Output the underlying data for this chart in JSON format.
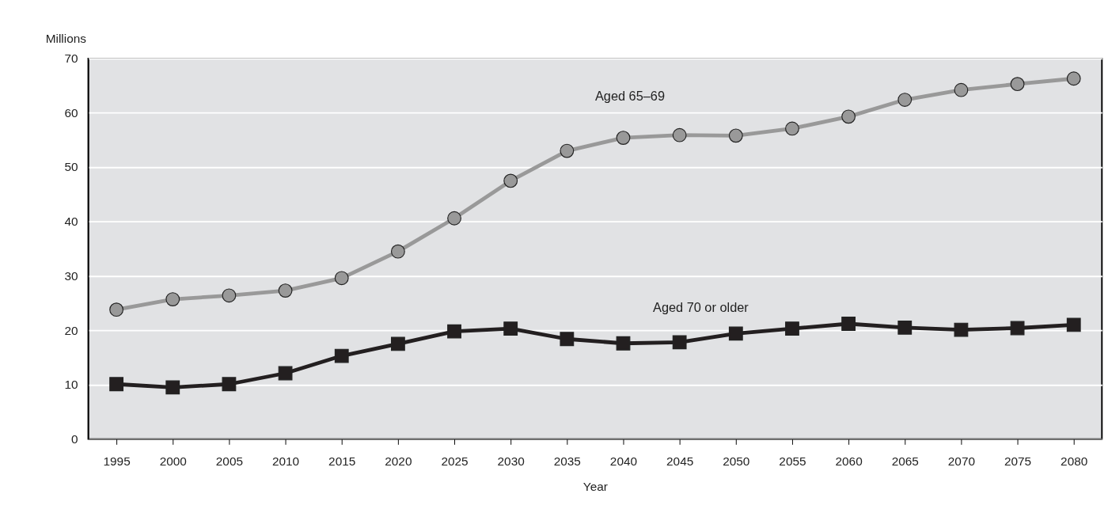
{
  "chart_data": {
    "type": "line",
    "ylabel": "Millions",
    "xlabel": "Year",
    "categories": [
      "1995",
      "2000",
      "2005",
      "2010",
      "2015",
      "2020",
      "2025",
      "2030",
      "2035",
      "2040",
      "2045",
      "2050",
      "2055",
      "2060",
      "2065",
      "2070",
      "2075",
      "2080"
    ],
    "series": [
      {
        "name": "Aged 65–69",
        "color": "#999999",
        "marker": "circle",
        "line_style": "solid",
        "values": [
          23.8,
          25.7,
          26.4,
          27.3,
          29.6,
          34.5,
          40.6,
          47.5,
          53.0,
          55.4,
          55.9,
          55.8,
          57.1,
          59.3,
          62.4,
          64.2,
          65.3,
          66.3
        ]
      },
      {
        "name": "Aged 70 or older",
        "color": "#231f20",
        "marker": "square",
        "line_style": "solid",
        "values": [
          10.1,
          9.5,
          10.1,
          12.1,
          15.3,
          17.5,
          19.8,
          20.3,
          18.4,
          17.6,
          17.8,
          19.4,
          20.3,
          21.2,
          20.5,
          20.1,
          20.4,
          21.0
        ]
      }
    ],
    "ylim": [
      0,
      70
    ],
    "yticks": [
      0,
      10,
      20,
      30,
      40,
      50,
      60,
      70
    ],
    "grid": "y",
    "legend": false
  }
}
